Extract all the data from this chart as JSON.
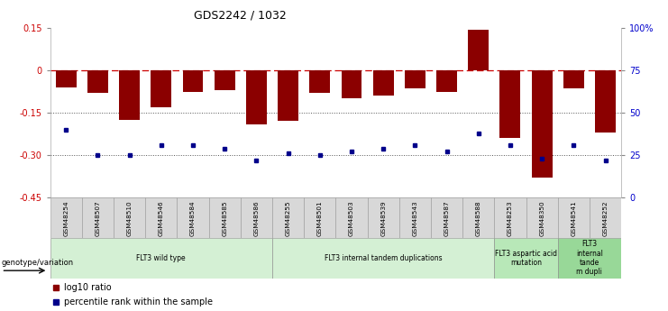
{
  "title": "GDS2242 / 1032",
  "samples": [
    "GSM48254",
    "GSM48507",
    "GSM48510",
    "GSM48546",
    "GSM48584",
    "GSM48585",
    "GSM48586",
    "GSM48255",
    "GSM48501",
    "GSM48503",
    "GSM48539",
    "GSM48543",
    "GSM48587",
    "GSM48588",
    "GSM48253",
    "GSM48350",
    "GSM48541",
    "GSM48252"
  ],
  "log10_ratio": [
    -0.06,
    -0.08,
    -0.175,
    -0.13,
    -0.075,
    -0.07,
    -0.19,
    -0.18,
    -0.08,
    -0.1,
    -0.09,
    -0.065,
    -0.075,
    0.145,
    -0.24,
    -0.38,
    -0.065,
    -0.22
  ],
  "percentile_raw": [
    40,
    25,
    25,
    31,
    31,
    29,
    22,
    26,
    25,
    27,
    29,
    31,
    27,
    38,
    31,
    23,
    31,
    22
  ],
  "ylim_left": [
    -0.45,
    0.15
  ],
  "ylim_right": [
    0,
    100
  ],
  "groups": [
    {
      "label": "FLT3 wild type",
      "start": 0,
      "end": 6,
      "color": "#d4f0d4"
    },
    {
      "label": "FLT3 internal tandem duplications",
      "start": 7,
      "end": 13,
      "color": "#d4f0d4"
    },
    {
      "label": "FLT3 aspartic acid\nmutation",
      "start": 14,
      "end": 15,
      "color": "#b8e8b8"
    },
    {
      "label": "FLT3\ninternal\ntande\nm dupli",
      "start": 16,
      "end": 17,
      "color": "#98d898"
    }
  ],
  "bar_color": "#8B0000",
  "scatter_color": "#00008B",
  "zero_line_color": "#CC0000",
  "dotted_line_color": "#555555",
  "left_yticks": [
    0.15,
    0.0,
    -0.15,
    -0.3,
    -0.45
  ],
  "left_yticklabels": [
    "0.15",
    "0",
    "-0.15",
    "-0.30",
    "-0.45"
  ],
  "right_yticks": [
    100,
    75,
    50,
    25,
    0
  ],
  "right_yticklabels": [
    "100%",
    "75",
    "50",
    "25",
    "0"
  ],
  "legend_items": [
    {
      "label": "log10 ratio",
      "color": "#8B0000"
    },
    {
      "label": "percentile rank within the sample",
      "color": "#00008B"
    }
  ]
}
